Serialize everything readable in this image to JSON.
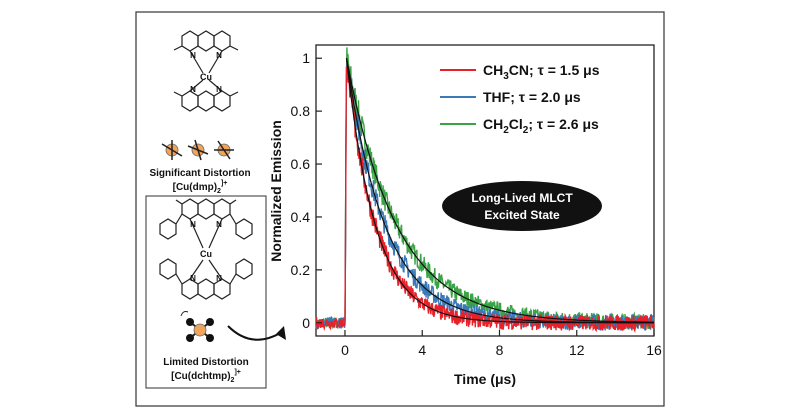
{
  "left_panel": {
    "top_caption_line1": "Significant Distortion",
    "top_caption_line2": "[Cu(dmp)",
    "top_caption_sub": "2",
    "top_caption_sup": "]+",
    "bottom_caption_line1": "Limited Distortion",
    "bottom_caption_line2": "[Cu(dchtmp)",
    "bottom_caption_sub": "2",
    "bottom_caption_sup": "]+",
    "atom_labels": {
      "cu": "Cu",
      "n": "N"
    }
  },
  "chart_data": {
    "type": "line",
    "xlabel": "Time (μs)",
    "ylabel": "Normalized Emission",
    "xlim": [
      -1.5,
      16
    ],
    "ylim": [
      -0.05,
      1.05
    ],
    "x_ticks": [
      0,
      4,
      8,
      12,
      16
    ],
    "y_ticks": [
      0,
      0.2,
      0.4,
      0.6,
      0.8,
      1
    ],
    "y_tick_labels": [
      "0",
      "0.2",
      "0.4",
      "0.6",
      "0.8",
      "1"
    ],
    "legend_position": "top-right",
    "series": [
      {
        "legend_parts": [
          "CH",
          "3",
          "CN; τ = 1.5 μs"
        ],
        "tau": 1.5,
        "color": "#e8202a"
      },
      {
        "legend_parts": [
          "THF; τ = 2.0 μs"
        ],
        "tau": 2.0,
        "color": "#3a7ab8"
      },
      {
        "legend_parts": [
          "CH",
          "2",
          "Cl",
          "2",
          "; τ = 2.6 μs"
        ],
        "tau": 2.6,
        "color": "#3aa345"
      }
    ],
    "fit_color": "#111111",
    "annotation_line1": "Long-Lived MLCT",
    "annotation_line2": "Excited State"
  }
}
